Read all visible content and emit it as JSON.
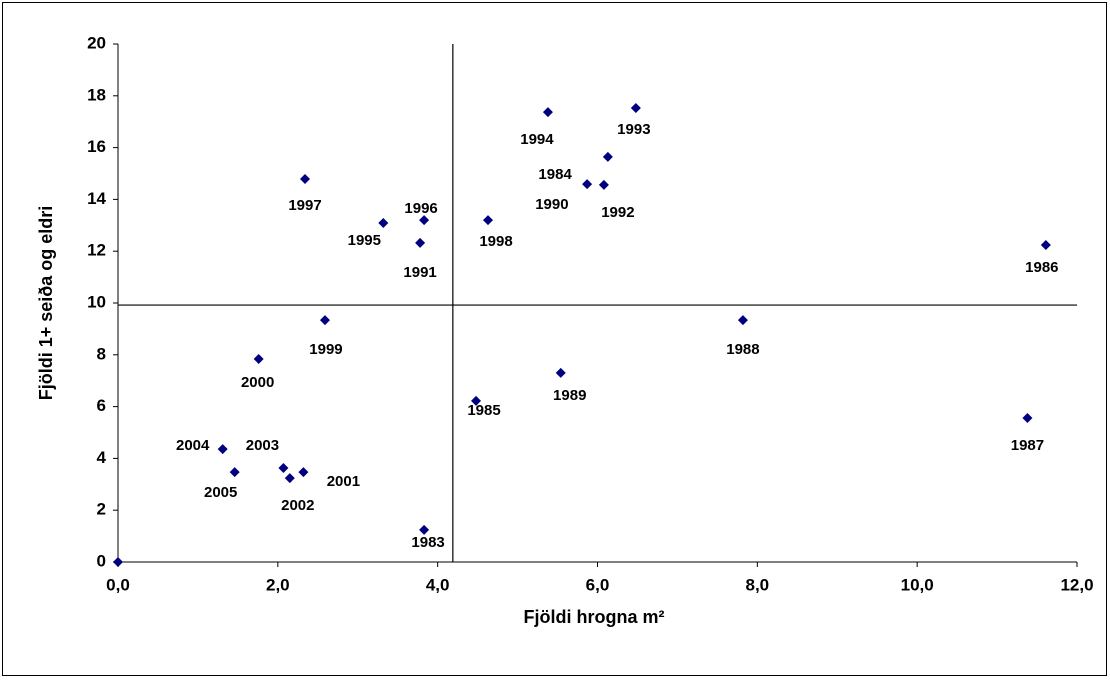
{
  "chart_data": {
    "type": "scatter",
    "x_label": "Fjöldi hrogna m²",
    "y_label": "Fjöldi 1+ seiða og eldri",
    "color": "#000080",
    "x": [
      0,
      3.83,
      1.31,
      1.46,
      2.07,
      2.15,
      2.32,
      1.76,
      2.59,
      2.34,
      3.32,
      3.83,
      3.78,
      4.63,
      5.38,
      6.48,
      5.87,
      6.08,
      6.13,
      11.61,
      7.82,
      5.54,
      4.48,
      11.38
    ],
    "values": [
      0,
      1.24,
      4.36,
      3.47,
      3.63,
      3.24,
      3.47,
      7.84,
      9.34,
      14.79,
      13.09,
      13.2,
      12.32,
      13.2,
      17.37,
      17.53,
      14.59,
      14.56,
      15.64,
      12.24,
      9.34,
      7.3,
      6.22,
      5.56
    ],
    "point_labels": [
      null,
      "1983",
      "2004",
      "2005",
      "2003",
      "2002",
      "2001",
      "2000",
      "1999",
      "1997",
      "1995",
      "1996",
      "1991",
      "1998",
      "1994",
      "1993",
      "1984",
      "1992",
      "1990",
      "1986",
      "1988",
      "1989",
      "1985",
      "1987"
    ],
    "xlim": [
      0,
      12
    ],
    "xticks": [
      {
        "value": 0,
        "label": "0,0"
      },
      {
        "value": 2,
        "label": "2,0"
      },
      {
        "value": 4,
        "label": "4,0"
      },
      {
        "value": 6,
        "label": "6,0"
      },
      {
        "value": 8,
        "label": "8,0"
      },
      {
        "value": 10,
        "label": "10,0"
      },
      {
        "value": 12,
        "label": "12,0"
      }
    ],
    "ylim": [
      0,
      20
    ],
    "yticks": [
      0,
      2,
      4,
      6,
      8,
      10,
      12,
      14,
      16,
      18,
      20
    ],
    "reference_x": 4.19,
    "reference_y": 9.92,
    "grid": false
  }
}
